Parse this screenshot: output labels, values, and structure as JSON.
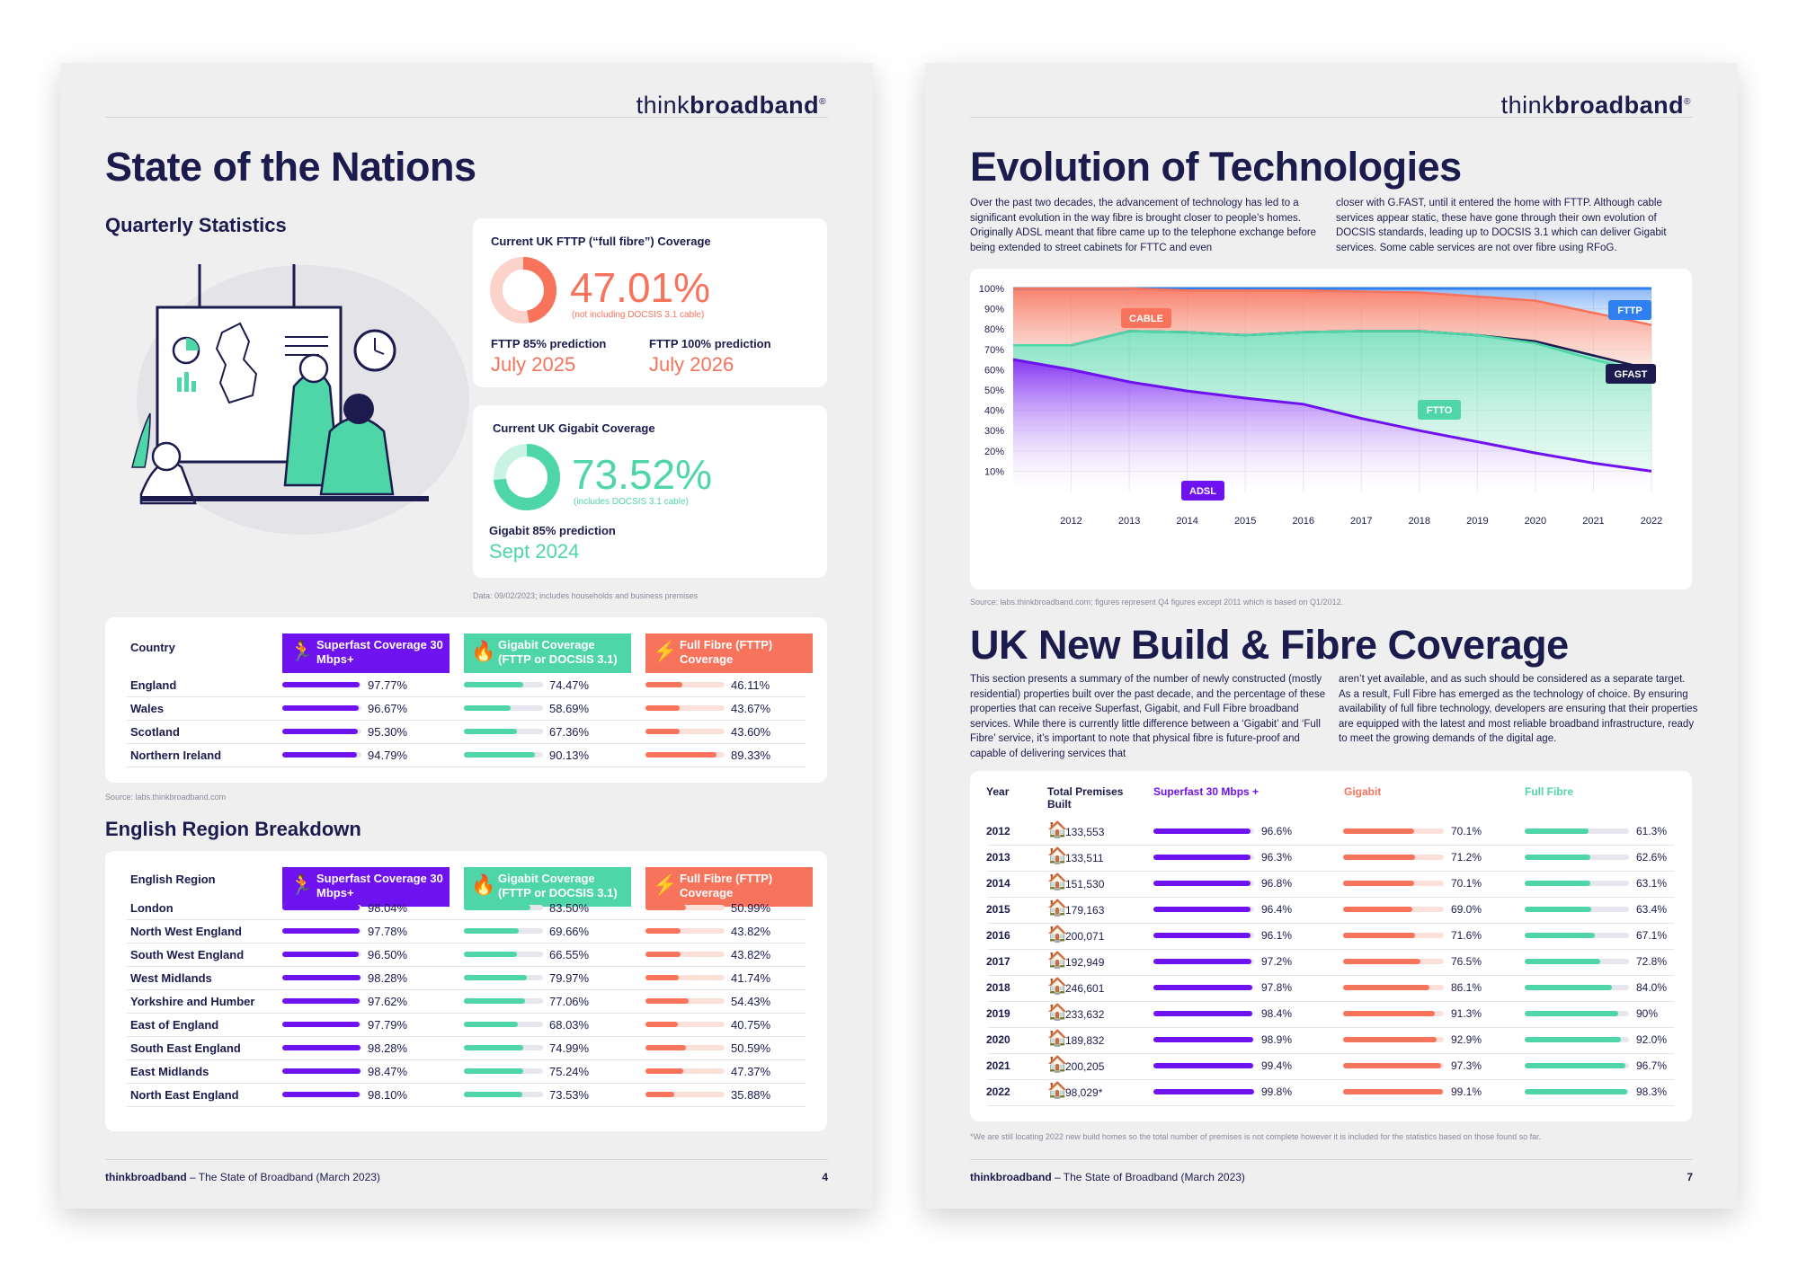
{
  "left": {
    "logo_a": "think",
    "logo_b": "broadband",
    "logo_reg": "®",
    "title": "State of the Nations",
    "quarterly": "Quarterly Statistics",
    "fttp_card": {
      "label": "Current UK FTTP (“full fibre”) Coverage",
      "value": "47.01%",
      "fraction": 0.4701,
      "note": "(not including DOCSIS 3.1 cable)",
      "pred85_label": "FTTP 85% prediction",
      "pred85": "July 2025",
      "pred100_label": "FTTP 100% prediction",
      "pred100": "July 2026"
    },
    "gig_card": {
      "label": "Current UK Gigabit Coverage",
      "value": "73.52%",
      "fraction": 0.7352,
      "note": "(includes DOCSIS 3.1 cable)",
      "pred85_label": "Gigabit 85% prediction",
      "pred85": "Sept 2024"
    },
    "data_note": "Data: 09/02/2023; includes households and business premises",
    "country_table": {
      "col0": "Country",
      "col1": "Superfast Coverage 30 Mbps+",
      "col2": "Gigabit Coverage (FTTP or DOCSIS 3.1)",
      "col3": "Full Fibre (FTTP) Coverage",
      "rows": [
        {
          "name": "England",
          "sf": "97.77%",
          "sf_v": 97.77,
          "gb": "74.47%",
          "gb_v": 74.47,
          "ff": "46.11%",
          "ff_v": 46.11
        },
        {
          "name": "Wales",
          "sf": "96.67%",
          "sf_v": 96.67,
          "gb": "58.69%",
          "gb_v": 58.69,
          "ff": "43.67%",
          "ff_v": 43.67
        },
        {
          "name": "Scotland",
          "sf": "95.30%",
          "sf_v": 95.3,
          "gb": "67.36%",
          "gb_v": 67.36,
          "ff": "43.60%",
          "ff_v": 43.6
        },
        {
          "name": "Northern Ireland",
          "sf": "94.79%",
          "sf_v": 94.79,
          "gb": "90.13%",
          "gb_v": 90.13,
          "ff": "89.33%",
          "ff_v": 89.33
        }
      ]
    },
    "source_note": "Source: labs.thinkbroadband.com",
    "region_heading": "English Region Breakdown",
    "region_table": {
      "col0": "English Region",
      "col1": "Superfast Coverage 30 Mbps+",
      "col2": "Gigabit Coverage (FTTP or DOCSIS 3.1)",
      "col3": "Full Fibre (FTTP) Coverage",
      "rows": [
        {
          "name": "London",
          "sf": "98.04%",
          "sf_v": 98.04,
          "gb": "83.50%",
          "gb_v": 83.5,
          "ff": "50.99%",
          "ff_v": 50.99
        },
        {
          "name": "North West England",
          "sf": "97.78%",
          "sf_v": 97.78,
          "gb": "69.66%",
          "gb_v": 69.66,
          "ff": "43.82%",
          "ff_v": 43.82
        },
        {
          "name": "South West England",
          "sf": "96.50%",
          "sf_v": 96.5,
          "gb": "66.55%",
          "gb_v": 66.55,
          "ff": "43.82%",
          "ff_v": 43.82
        },
        {
          "name": "West Midlands",
          "sf": "98.28%",
          "sf_v": 98.28,
          "gb": "79.97%",
          "gb_v": 79.97,
          "ff": "41.74%",
          "ff_v": 41.74
        },
        {
          "name": "Yorkshire and Humber",
          "sf": "97.62%",
          "sf_v": 97.62,
          "gb": "77.06%",
          "gb_v": 77.06,
          "ff": "54.43%",
          "ff_v": 54.43
        },
        {
          "name": "East of England",
          "sf": "97.79%",
          "sf_v": 97.79,
          "gb": "68.03%",
          "gb_v": 68.03,
          "ff": "40.75%",
          "ff_v": 40.75
        },
        {
          "name": "South East England",
          "sf": "98.28%",
          "sf_v": 98.28,
          "gb": "74.99%",
          "gb_v": 74.99,
          "ff": "50.59%",
          "ff_v": 50.59
        },
        {
          "name": "East Midlands",
          "sf": "98.47%",
          "sf_v": 98.47,
          "gb": "75.24%",
          "gb_v": 75.24,
          "ff": "47.37%",
          "ff_v": 47.37
        },
        {
          "name": "North East England",
          "sf": "98.10%",
          "sf_v": 98.1,
          "gb": "73.53%",
          "gb_v": 73.53,
          "ff": "35.88%",
          "ff_v": 35.88
        }
      ]
    },
    "footer_brand": "thinkbroadband",
    "footer_text": " – The State of Broadband (March 2023)",
    "page_number": "4"
  },
  "right": {
    "title": "Evolution of Technologies",
    "para_left": "Over the past two decades, the advancement of technology has led to a significant evolution in the way fibre is brought closer to people’s homes. Originally ADSL meant that fibre came up to the telephone exchange before being extended to street cabinets for FTTC and even",
    "para_right": "closer with G.FAST, until it entered the home with FTTP. Although cable services appear static, these have gone through their own evolution of DOCSIS standards, leading up to DOCSIS 3.1 which can deliver Gigabit services. Some cable services are not over fibre using RFoG.",
    "chart_source": "Source: labs.thinkbroadband.com; figures represent Q4 figures except 2011 which is based on Q1/2012.",
    "build_title": "UK New Build & Fibre Coverage",
    "build_para_left": "This section presents a summary of the number of newly constructed (mostly residential) properties built over the past decade, and the percentage of these properties that can receive Superfast, Gigabit, and Full Fibre broadband services. While there is currently little difference between a ‘Gigabit’ and ‘Full Fibre’ service, it’s important to note that physical fibre is future-proof and capable of delivering services that",
    "build_para_right": "aren’t yet available, and as such should be considered as a separate target. As a result, Full Fibre has emerged as the technology of choice. By ensuring availability of full fibre technology, developers are ensuring that their properties are equipped with the latest and most reliable broadband infrastructure, ready to meet the growing demands of the digital age.",
    "build_table": {
      "h_year": "Year",
      "h_total": "Total Premises Built",
      "h_sf": "Superfast 30 Mbps +",
      "h_gb": "Gigabit",
      "h_ff": "Full Fibre",
      "rows": [
        {
          "year": "2012",
          "total": "133,553",
          "sf": "96.6%",
          "sf_v": 96.6,
          "gb": "70.1%",
          "gb_v": 70.1,
          "ff": "61.3%",
          "ff_v": 61.3
        },
        {
          "year": "2013",
          "total": "133,511",
          "sf": "96.3%",
          "sf_v": 96.3,
          "gb": "71.2%",
          "gb_v": 71.2,
          "ff": "62.6%",
          "ff_v": 62.6
        },
        {
          "year": "2014",
          "total": "151,530",
          "sf": "96.8%",
          "sf_v": 96.8,
          "gb": "70.1%",
          "gb_v": 70.1,
          "ff": "63.1%",
          "ff_v": 63.1
        },
        {
          "year": "2015",
          "total": "179,163",
          "sf": "96.4%",
          "sf_v": 96.4,
          "gb": "69.0%",
          "gb_v": 69.0,
          "ff": "63.4%",
          "ff_v": 63.4
        },
        {
          "year": "2016",
          "total": "200,071",
          "sf": "96.1%",
          "sf_v": 96.1,
          "gb": "71.6%",
          "gb_v": 71.6,
          "ff": "67.1%",
          "ff_v": 67.1
        },
        {
          "year": "2017",
          "total": "192,949",
          "sf": "97.2%",
          "sf_v": 97.2,
          "gb": "76.5%",
          "gb_v": 76.5,
          "ff": "72.8%",
          "ff_v": 72.8
        },
        {
          "year": "2018",
          "total": "246,601",
          "sf": "97.8%",
          "sf_v": 97.8,
          "gb": "86.1%",
          "gb_v": 86.1,
          "ff": "84.0%",
          "ff_v": 84.0
        },
        {
          "year": "2019",
          "total": "233,632",
          "sf": "98.4%",
          "sf_v": 98.4,
          "gb": "91.3%",
          "gb_v": 91.3,
          "ff": "90%",
          "ff_v": 90
        },
        {
          "year": "2020",
          "total": "189,832",
          "sf": "98.9%",
          "sf_v": 98.9,
          "gb": "92.9%",
          "gb_v": 92.9,
          "ff": "92.0%",
          "ff_v": 92.0
        },
        {
          "year": "2021",
          "total": "200,205",
          "sf": "99.4%",
          "sf_v": 99.4,
          "gb": "97.3%",
          "gb_v": 97.3,
          "ff": "96.7%",
          "ff_v": 96.7
        },
        {
          "year": "2022",
          "total": "98,029*",
          "sf": "99.8%",
          "sf_v": 99.8,
          "gb": "99.1%",
          "gb_v": 99.1,
          "ff": "98.3%",
          "ff_v": 98.3
        }
      ]
    },
    "build_note": "*We are still locating 2022 new build homes so the total number of premises is not complete however it is included for the statistics based on those found so far.",
    "footer_brand": "thinkbroadband",
    "footer_text": " – The State of Broadband (March 2023)",
    "page_number": "7"
  },
  "colors": {
    "navy": "#1c1b4d",
    "purple": "#6f12f0",
    "teal": "#4fd6a8",
    "salmon": "#f7735b",
    "blue": "#2f7ff0"
  },
  "icons": {
    "superfast": "running-person-icon",
    "gigabit": "flame-icon",
    "fullfibre": "lightning-icon",
    "house": "house-icon"
  },
  "chart_data": {
    "type": "area",
    "x": [
      2011,
      2012,
      2013,
      2014,
      2015,
      2016,
      2017,
      2018,
      2019,
      2020,
      2021,
      2022
    ],
    "x_tick_labels": [
      "2012",
      "2013",
      "2014",
      "2015",
      "2016",
      "2017",
      "2018",
      "2019",
      "2020",
      "2021",
      "2022"
    ],
    "y_tick_labels": [
      "100%",
      "90%",
      "80%",
      "70%",
      "60%",
      "50%",
      "40%",
      "30%",
      "20%",
      "10%"
    ],
    "ylim": [
      0,
      100
    ],
    "series": [
      {
        "name": "FTTP",
        "values": [
          100,
          100,
          100,
          100,
          100,
          100,
          100,
          100,
          100,
          100,
          100,
          100
        ]
      },
      {
        "name": "CABLE",
        "values": [
          100,
          100,
          100,
          99,
          99,
          99,
          98.5,
          98,
          96,
          94,
          88,
          82
        ]
      },
      {
        "name": "GFAST",
        "values": [
          72,
          72,
          79,
          78.5,
          77,
          78.5,
          79,
          79,
          77,
          74,
          67,
          60
        ]
      },
      {
        "name": "FTTO",
        "values": [
          72,
          72,
          79,
          78.5,
          77,
          78.5,
          79,
          79,
          77,
          73,
          65,
          58
        ]
      },
      {
        "name": "ADSL",
        "values": [
          65,
          60,
          54,
          49.5,
          46,
          43,
          36,
          30,
          24.5,
          19,
          14,
          10
        ]
      }
    ],
    "grid": true,
    "legend": "inline labels"
  }
}
